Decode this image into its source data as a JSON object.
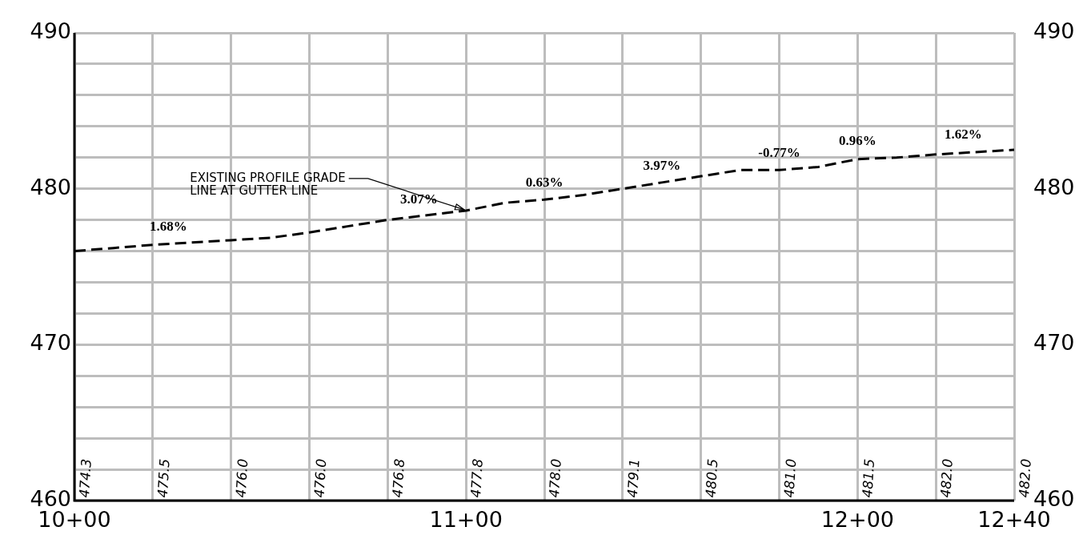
{
  "chart_data": {
    "type": "line",
    "line_style": "dashed",
    "marker": "none",
    "grid": true,
    "legend": false,
    "categories": [
      "10+00",
      null,
      null,
      null,
      null,
      null,
      null,
      null,
      null,
      null,
      "11+00",
      null,
      null,
      null,
      null,
      null,
      null,
      null,
      null,
      null,
      "12+00",
      null,
      null,
      null,
      "12+40"
    ],
    "series": [
      {
        "color": "#000000",
        "values": [
          476.0,
          476.2,
          476.4,
          476.55,
          476.7,
          476.85,
          477.2,
          477.6,
          478.0,
          478.3,
          478.6,
          479.1,
          479.3,
          479.6,
          480.0,
          480.4,
          480.8,
          481.2,
          481.2,
          481.4,
          481.9,
          482.0,
          482.2,
          482.35,
          482.5
        ]
      }
    ],
    "ylim": [
      460,
      490
    ],
    "yticks": [
      460,
      {
        "value": 462,
        "label": null
      },
      {
        "value": 464,
        "label": null
      },
      {
        "value": 466,
        "label": null
      },
      {
        "value": 468,
        "label": null
      },
      470,
      {
        "value": 472,
        "label": null
      },
      {
        "value": 474,
        "label": null
      },
      {
        "value": 476,
        "label": null
      },
      {
        "value": 478,
        "label": null
      },
      480,
      {
        "value": 482,
        "label": null
      },
      {
        "value": 484,
        "label": null
      },
      {
        "value": 486,
        "label": null
      },
      {
        "value": 488,
        "label": null
      },
      490
    ],
    "y2lim": [
      460,
      490
    ],
    "y2ticks": [
      460,
      470,
      480,
      490
    ],
    "annotations": [
      {
        "text": "EXISTING PROFILE GRADE\nLINE AT GUTTER LINE",
        "x": "11+00",
        "y": 478.6
      },
      "1.68%",
      "3.07%",
      "0.63%",
      "3.97%",
      "-0.77%",
      "0.96%",
      "1.62%",
      "474.3",
      "475.5",
      "476.0",
      "476.0",
      "476.8",
      "477.8",
      "478.0",
      "479.1",
      "480.5",
      "481.0",
      "481.5",
      "482.0",
      "482.0"
    ]
  }
}
